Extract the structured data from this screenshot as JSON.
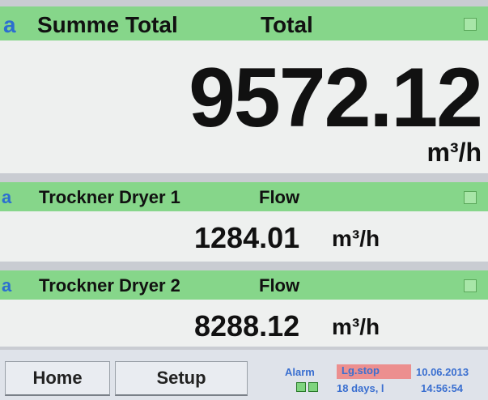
{
  "panels": [
    {
      "prefix": "a",
      "title": "Summe Total",
      "label": "Total",
      "value": "9572.12",
      "unit": "m³/h"
    },
    {
      "prefix": "a",
      "title": "Trockner Dryer 1",
      "label": "Flow",
      "value": "1284.01",
      "unit": "m³/h"
    },
    {
      "prefix": "a",
      "title": "Trockner Dryer 2",
      "label": "Flow",
      "value": "8288.12",
      "unit": "m³/h"
    }
  ],
  "footer": {
    "buttons": [
      "Home",
      "Setup"
    ],
    "alarm": "Alarm",
    "status": "Lg.stop",
    "days": "18 days, l",
    "date": "10.06.2013",
    "time": "14:56:54"
  }
}
